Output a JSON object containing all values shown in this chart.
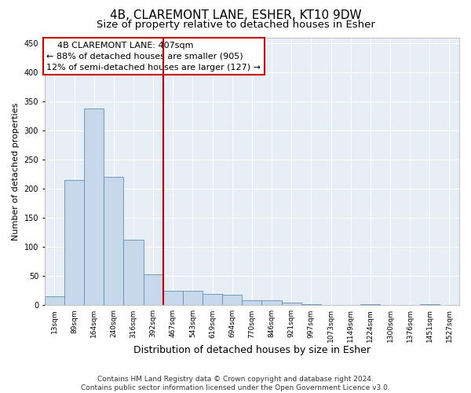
{
  "title1": "4B, CLAREMONT LANE, ESHER, KT10 9DW",
  "title2": "Size of property relative to detached houses in Esher",
  "xlabel": "Distribution of detached houses by size in Esher",
  "ylabel": "Number of detached properties",
  "bin_labels": [
    "13sqm",
    "89sqm",
    "164sqm",
    "240sqm",
    "316sqm",
    "392sqm",
    "467sqm",
    "543sqm",
    "619sqm",
    "694sqm",
    "770sqm",
    "846sqm",
    "921sqm",
    "997sqm",
    "1073sqm",
    "1149sqm",
    "1224sqm",
    "1300sqm",
    "1376sqm",
    "1451sqm",
    "1527sqm"
  ],
  "bar_heights": [
    15,
    215,
    338,
    220,
    112,
    53,
    25,
    25,
    20,
    18,
    8,
    8,
    5,
    2,
    1,
    0,
    2,
    0,
    0,
    2,
    1
  ],
  "bar_color": "#c8d8eb",
  "bar_edge_color": "#6090b8",
  "bar_edge_width": 0.6,
  "vline_x_index": 5.5,
  "vline_color": "#cc0000",
  "ylim": [
    0,
    460
  ],
  "yticks": [
    0,
    50,
    100,
    150,
    200,
    250,
    300,
    350,
    400,
    450
  ],
  "annotation_line1": "    4B CLAREMONT LANE: 407sqm",
  "annotation_line2": "← 88% of detached houses are smaller (905)",
  "annotation_line3": "12% of semi-detached houses are larger (127) →",
  "footer_line1": "Contains HM Land Registry data © Crown copyright and database right 2024.",
  "footer_line2": "Contains public sector information licensed under the Open Government Licence v3.0.",
  "bg_color": "#ffffff",
  "plot_bg_color": "#e8eef5",
  "grid_color": "#ffffff",
  "title1_fontsize": 11,
  "title2_fontsize": 9.5,
  "tick_fontsize": 6.5,
  "ylabel_fontsize": 8,
  "xlabel_fontsize": 9,
  "annotation_fontsize": 8,
  "footer_fontsize": 6.5
}
